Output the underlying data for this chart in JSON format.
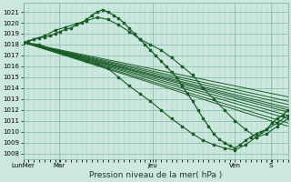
{
  "xlabel": "Pression niveau de la mer( hPa )",
  "bg_color": "#cce8de",
  "grid_color_major": "#8cbcb0",
  "grid_color_minor": "#b0d8cc",
  "line_color": "#1a5c28",
  "ylim": [
    1007.5,
    1021.8
  ],
  "yticks": [
    1008,
    1009,
    1010,
    1011,
    1012,
    1013,
    1014,
    1015,
    1016,
    1017,
    1018,
    1019,
    1020,
    1021
  ],
  "xlim": [
    0,
    1.0
  ],
  "xtick_positions": [
    0.0,
    0.135,
    0.49,
    0.8,
    0.935
  ],
  "xtick_labels": [
    "LunMer",
    "Mar",
    "Jeu",
    "Ven",
    "S"
  ],
  "vlines": [
    0.0,
    0.135,
    0.49,
    0.8,
    0.935
  ],
  "ensemble_lines": [
    {
      "x": [
        0.0,
        1.0
      ],
      "y": [
        1018.2,
        1012.8
      ]
    },
    {
      "x": [
        0.0,
        1.0
      ],
      "y": [
        1018.2,
        1012.5
      ]
    },
    {
      "x": [
        0.0,
        1.0
      ],
      "y": [
        1018.2,
        1012.2
      ]
    },
    {
      "x": [
        0.0,
        1.0
      ],
      "y": [
        1018.2,
        1012.0
      ]
    },
    {
      "x": [
        0.0,
        1.0
      ],
      "y": [
        1018.2,
        1011.8
      ]
    },
    {
      "x": [
        0.0,
        1.0
      ],
      "y": [
        1018.2,
        1011.5
      ]
    },
    {
      "x": [
        0.0,
        1.0
      ],
      "y": [
        1018.2,
        1011.2
      ]
    },
    {
      "x": [
        0.0,
        1.0
      ],
      "y": [
        1018.2,
        1010.8
      ]
    },
    {
      "x": [
        0.0,
        1.0
      ],
      "y": [
        1018.2,
        1010.5
      ]
    },
    {
      "x": [
        0.0,
        1.0
      ],
      "y": [
        1018.2,
        1013.2
      ]
    }
  ],
  "main_line_x": [
    0.0,
    0.02,
    0.04,
    0.06,
    0.08,
    0.1,
    0.12,
    0.14,
    0.16,
    0.18,
    0.2,
    0.22,
    0.24,
    0.26,
    0.28,
    0.3,
    0.32,
    0.34,
    0.36,
    0.38,
    0.4,
    0.42,
    0.44,
    0.46,
    0.48,
    0.5,
    0.52,
    0.54,
    0.56,
    0.58,
    0.6,
    0.62,
    0.64,
    0.66,
    0.68,
    0.7,
    0.72,
    0.74,
    0.76,
    0.78,
    0.8,
    0.82,
    0.84,
    0.86,
    0.88,
    0.9,
    0.92,
    0.94,
    0.96,
    0.98,
    1.0
  ],
  "main_line_y": [
    1018.2,
    1018.3,
    1018.5,
    1018.6,
    1018.7,
    1018.8,
    1019.0,
    1019.2,
    1019.4,
    1019.5,
    1019.8,
    1020.0,
    1020.3,
    1020.7,
    1021.0,
    1021.2,
    1021.0,
    1020.7,
    1020.4,
    1020.0,
    1019.5,
    1019.0,
    1018.5,
    1018.0,
    1017.5,
    1017.0,
    1016.5,
    1016.0,
    1015.5,
    1015.0,
    1014.2,
    1013.5,
    1012.8,
    1012.0,
    1011.2,
    1010.5,
    1009.8,
    1009.3,
    1009.0,
    1008.7,
    1008.5,
    1008.8,
    1009.2,
    1009.5,
    1009.8,
    1010.0,
    1010.2,
    1010.8,
    1011.2,
    1011.5,
    1012.0
  ],
  "upper_curve_x": [
    0.0,
    0.04,
    0.08,
    0.12,
    0.16,
    0.2,
    0.24,
    0.28,
    0.32,
    0.36,
    0.4,
    0.44,
    0.48,
    0.52,
    0.56,
    0.6,
    0.64,
    0.68,
    0.72,
    0.76,
    0.8,
    0.84,
    0.88,
    0.92,
    0.96,
    1.0
  ],
  "upper_curve_y": [
    1018.2,
    1018.5,
    1018.8,
    1019.3,
    1019.6,
    1019.9,
    1020.2,
    1020.5,
    1020.3,
    1019.8,
    1019.2,
    1018.5,
    1018.0,
    1017.5,
    1016.8,
    1016.0,
    1015.2,
    1014.0,
    1013.0,
    1012.0,
    1011.0,
    1010.2,
    1009.5,
    1009.8,
    1010.5,
    1011.2
  ],
  "lower_curve_x": [
    0.0,
    0.06,
    0.12,
    0.16,
    0.2,
    0.24,
    0.28,
    0.32,
    0.36,
    0.4,
    0.44,
    0.48,
    0.52,
    0.56,
    0.6,
    0.64,
    0.68,
    0.72,
    0.76,
    0.8,
    0.84,
    0.88,
    0.92,
    0.96,
    1.0
  ],
  "lower_curve_y": [
    1018.2,
    1018.0,
    1017.5,
    1017.2,
    1016.8,
    1016.5,
    1016.2,
    1015.8,
    1015.0,
    1014.2,
    1013.5,
    1012.8,
    1012.0,
    1011.2,
    1010.5,
    1009.8,
    1009.2,
    1008.8,
    1008.5,
    1008.3,
    1008.8,
    1009.5,
    1010.2,
    1010.8,
    1011.5
  ]
}
